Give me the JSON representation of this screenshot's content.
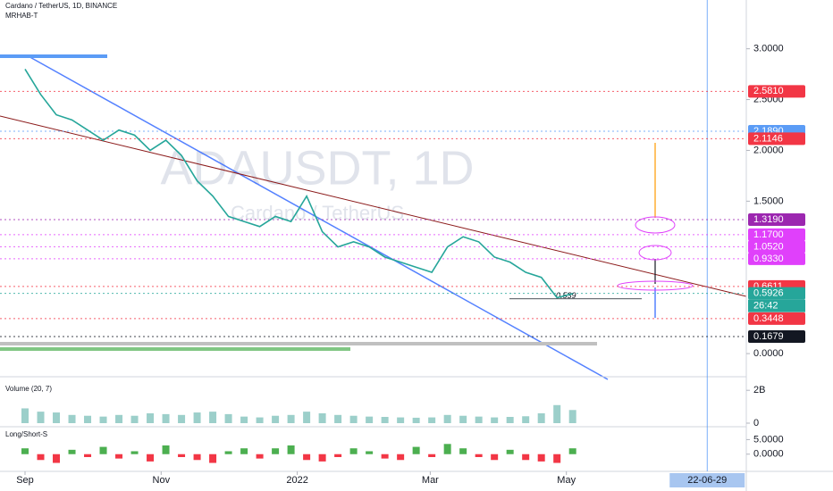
{
  "chart_data": [
    {
      "type": "line",
      "title": "Cardano / TetherUS, 1D, BINANCE",
      "subtitle": "MRHAB-T",
      "watermark": "ADAUSDT, 1D",
      "watermark_sub": "Cardano / TetherUS",
      "color": "#26a69a",
      "x": [
        0,
        1,
        2,
        3,
        4,
        5,
        6,
        7,
        8,
        9,
        10,
        11,
        12,
        13,
        14,
        15,
        16,
        17,
        18,
        19,
        20,
        21,
        22,
        23,
        24,
        25,
        26,
        27,
        28,
        29,
        30,
        31,
        32,
        33,
        34,
        35
      ],
      "values": [
        2.8,
        2.55,
        2.35,
        2.3,
        2.2,
        2.1,
        2.2,
        2.15,
        2.0,
        2.1,
        1.95,
        1.7,
        1.55,
        1.35,
        1.3,
        1.25,
        1.35,
        1.3,
        1.55,
        1.2,
        1.05,
        1.1,
        1.05,
        0.95,
        0.9,
        0.85,
        0.8,
        1.05,
        1.15,
        1.1,
        0.95,
        0.9,
        0.8,
        0.75,
        0.55,
        0.59
      ],
      "xlim": [
        -1.6,
        46.1
      ],
      "xticks": [
        {
          "value": 0,
          "label": "Sep"
        },
        {
          "value": 8.7,
          "label": "Nov"
        },
        {
          "value": 17.4,
          "label": "2022"
        },
        {
          "value": 25.9,
          "label": "Mar"
        },
        {
          "value": 34.6,
          "label": "May"
        }
      ],
      "cursor_date": {
        "value": 43.6,
        "label": "22-06-29"
      },
      "ylim": [
        -0.21,
        3.48
      ],
      "yticks": [
        {
          "value": 3,
          "label": "3.0000"
        },
        {
          "value": 2.5,
          "label": "2.5000"
        },
        {
          "value": 2,
          "label": "2.0000"
        },
        {
          "value": 1.5,
          "label": "1.5000"
        },
        {
          "value": 0,
          "label": "0.0000"
        }
      ],
      "levels": [
        {
          "value": 2.581,
          "label": "2.5810",
          "color": "#f23645"
        },
        {
          "value": 2.189,
          "label": "2.1890",
          "color": "#5b9cf6"
        },
        {
          "value": 2.1146,
          "label": "2.1146",
          "color": "#f23645"
        },
        {
          "value": 1.319,
          "label": "1.3190",
          "color": "#9c27b0"
        },
        {
          "value": 1.17,
          "label": "1.1700",
          "color": "#e040fb"
        },
        {
          "value": 1.052,
          "label": "1.0520",
          "color": "#e040fb"
        },
        {
          "value": 0.933,
          "label": "0.9330",
          "color": "#e040fb"
        },
        {
          "value": 0.6611,
          "label": "0.6611",
          "color": "#f23645"
        },
        {
          "value": 0.5926,
          "label": "0.5926",
          "color": "#26a69a"
        },
        {
          "value": 0.3448,
          "label": "0.3448",
          "color": "#f23645"
        },
        {
          "value": 0.1679,
          "label": "0.1679",
          "color": "#131722"
        }
      ],
      "countdown": "26:42",
      "annotation": {
        "value": 0.539,
        "label": "0.539"
      }
    },
    {
      "type": "bar",
      "title": "Volume (20, 7)",
      "color": "#9ccfca",
      "values": [
        900000000,
        700000000,
        650000000,
        500000000,
        450000000,
        400000000,
        500000000,
        450000000,
        600000000,
        550000000,
        500000000,
        650000000,
        700000000,
        550000000,
        400000000,
        350000000,
        450000000,
        500000000,
        700000000,
        600000000,
        500000000,
        450000000,
        400000000,
        380000000,
        350000000,
        330000000,
        350000000,
        500000000,
        450000000,
        400000000,
        350000000,
        380000000,
        420000000,
        600000000,
        1100000000,
        800000000
      ],
      "ylim": [
        0,
        2500000000
      ],
      "yticks": [
        {
          "value": 2000000000,
          "label": "2B"
        },
        0
      ]
    },
    {
      "type": "bar",
      "title": "Long/Short-S",
      "color": "#4caf50",
      "neg_color": "#f23645",
      "values": [
        2,
        -2,
        -3,
        1.5,
        -1,
        2.5,
        -1.5,
        1,
        -2.5,
        3,
        -1,
        -2,
        -3,
        1,
        2,
        -1.5,
        2,
        3,
        -2,
        -2.5,
        -1,
        2,
        1,
        -1.5,
        -2,
        2.5,
        -1,
        3.5,
        2,
        -1,
        -2,
        1.5,
        -2,
        -2.5,
        -3,
        2
      ],
      "ylim": [
        -5.9,
        8.8
      ],
      "yticks": [
        {
          "value": 5,
          "label": "5.0000"
        },
        {
          "value": 0,
          "label": "0.0000"
        }
      ]
    }
  ]
}
